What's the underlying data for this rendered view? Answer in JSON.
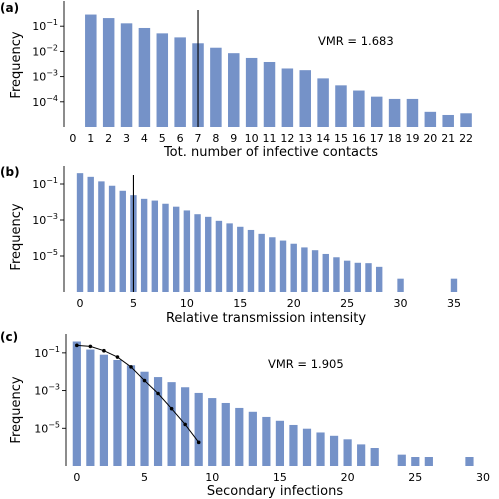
{
  "figure": {
    "bar_color": "#7592c8",
    "ref_line_color": "#000000",
    "fit_line_color": "#000000"
  },
  "chart_data": [
    {
      "type": "bar",
      "panel_label": "(a)",
      "xlabel": "Tot. number of infective contacts",
      "ylabel": "Frequency",
      "yscale": "log",
      "ylim": [
        1e-05,
        1
      ],
      "xlim": [
        -0.5,
        22.5
      ],
      "xticks": [
        0,
        1,
        2,
        3,
        4,
        5,
        6,
        7,
        8,
        9,
        10,
        11,
        12,
        13,
        14,
        15,
        16,
        17,
        18,
        19,
        20,
        21,
        22
      ],
      "yticks": [
        0.0001,
        0.001,
        0.01,
        0.1
      ],
      "ytick_labels": [
        {
          "base": "10",
          "exp": "−4"
        },
        {
          "base": "10",
          "exp": "−3"
        },
        {
          "base": "10",
          "exp": "−2"
        },
        {
          "base": "10",
          "exp": "−1"
        }
      ],
      "x": [
        1,
        2,
        3,
        4,
        5,
        6,
        7,
        8,
        9,
        10,
        11,
        12,
        13,
        14,
        15,
        16,
        17,
        18,
        19,
        20,
        21,
        22
      ],
      "values": [
        0.29,
        0.21,
        0.13,
        0.085,
        0.052,
        0.036,
        0.021,
        0.014,
        0.0085,
        0.0055,
        0.0038,
        0.0021,
        0.0018,
        0.00085,
        0.00045,
        0.00028,
        0.00016,
        0.00013,
        0.00013,
        4e-05,
        3e-05,
        3.5e-05
      ],
      "vline": 7,
      "annotation": "VMR = 1.683",
      "grid": false
    },
    {
      "type": "bar",
      "panel_label": "(b)",
      "xlabel": "Relative transmission intensity",
      "ylabel": "Frequency",
      "yscale": "log",
      "ylim": [
        1e-07,
        1
      ],
      "xlim": [
        -1.5,
        36.5
      ],
      "xticks": [
        0,
        5,
        10,
        15,
        20,
        25,
        30,
        35
      ],
      "yticks": [
        1e-05,
        0.001,
        0.1
      ],
      "ytick_labels": [
        {
          "base": "10",
          "exp": "−5"
        },
        {
          "base": "10",
          "exp": "−3"
        },
        {
          "base": "10",
          "exp": "−1"
        }
      ],
      "x": [
        0,
        1,
        2,
        3,
        4,
        5,
        6,
        7,
        8,
        9,
        10,
        11,
        12,
        13,
        14,
        15,
        16,
        17,
        18,
        19,
        20,
        21,
        22,
        23,
        24,
        25,
        26,
        27,
        28,
        30,
        35
      ],
      "values": [
        0.4,
        0.25,
        0.14,
        0.08,
        0.042,
        0.024,
        0.015,
        0.012,
        0.008,
        0.0055,
        0.0034,
        0.0021,
        0.0015,
        0.0009,
        0.00065,
        0.00042,
        0.00028,
        0.00017,
        0.00011,
        7.2e-05,
        4.8e-05,
        3e-05,
        2.1e-05,
        1.3e-05,
        8.5e-06,
        5.5e-06,
        4.2e-06,
        4e-06,
        2.5e-06,
        5.5e-07,
        5.5e-07
      ],
      "vline": 5,
      "grid": false
    },
    {
      "type": "bar",
      "panel_label": "(c)",
      "xlabel": "Secondary infections",
      "ylabel": "Frequency",
      "yscale": "log",
      "ylim": [
        1e-07,
        1
      ],
      "xlim": [
        -0.8,
        30
      ],
      "xticks": [
        0,
        5,
        10,
        15,
        20,
        25,
        30
      ],
      "yticks": [
        1e-05,
        0.001,
        0.1
      ],
      "ytick_labels": [
        {
          "base": "10",
          "exp": "−5"
        },
        {
          "base": "10",
          "exp": "−3"
        },
        {
          "base": "10",
          "exp": "−1"
        }
      ],
      "x": [
        0,
        1,
        2,
        3,
        4,
        5,
        6,
        7,
        8,
        9,
        10,
        11,
        12,
        13,
        14,
        15,
        16,
        17,
        18,
        19,
        20,
        21,
        22,
        24,
        25,
        26,
        29
      ],
      "values": [
        0.4,
        0.15,
        0.08,
        0.042,
        0.022,
        0.01,
        0.0052,
        0.0028,
        0.0015,
        0.00075,
        0.0004,
        0.00022,
        0.00012,
        7.5e-05,
        4e-05,
        2.5e-05,
        1.5e-05,
        9.5e-06,
        6e-06,
        4e-06,
        2.6e-06,
        1.4e-06,
        9e-07,
        4e-07,
        3e-07,
        3e-07,
        3e-07
      ],
      "fit": {
        "x": [
          0,
          1,
          2,
          3,
          4,
          5,
          6,
          7,
          8,
          9
        ],
        "y": [
          0.25,
          0.22,
          0.13,
          0.06,
          0.018,
          0.0034,
          0.0007,
          0.00011,
          1.6e-05,
          1.8e-06
        ]
      },
      "annotation": "VMR = 1.905",
      "grid": false
    }
  ]
}
